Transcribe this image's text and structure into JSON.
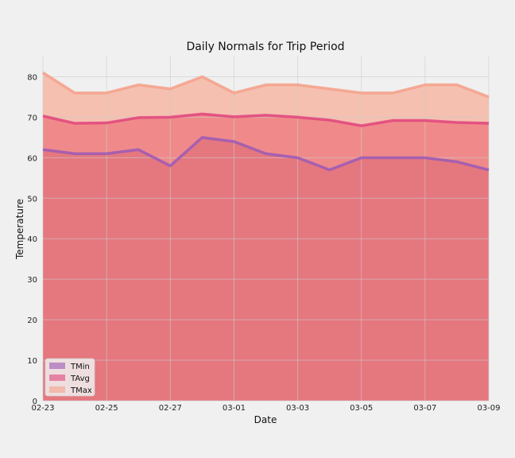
{
  "chart_data": {
    "type": "area",
    "title": "Daily Normals for Trip Period",
    "xlabel": "Date",
    "ylabel": "Temperature",
    "x": [
      "02-23",
      "02-24",
      "02-25",
      "02-26",
      "02-27",
      "02-28",
      "03-01",
      "03-02",
      "03-03",
      "03-04",
      "03-05",
      "03-06",
      "03-07",
      "03-08",
      "03-09"
    ],
    "xticks": [
      "02-23",
      "02-25",
      "02-27",
      "03-01",
      "03-03",
      "03-05",
      "03-07",
      "03-09"
    ],
    "ylim": [
      0,
      85
    ],
    "yticks": [
      0,
      10,
      20,
      30,
      40,
      50,
      60,
      70,
      80
    ],
    "grid": true,
    "stacked": false,
    "legend_position": "lower-left",
    "series": [
      {
        "name": "TMin",
        "color": "#9b59b6",
        "fill": "#e5777f",
        "values": [
          62,
          61,
          61,
          62,
          58,
          65,
          64,
          61,
          60,
          57,
          60,
          60,
          60,
          59,
          57
        ]
      },
      {
        "name": "TAvg",
        "color": "#e0447c",
        "fill": "#f08a8a",
        "values": [
          70.3,
          68.5,
          68.6,
          69.9,
          70.0,
          70.8,
          70.1,
          70.5,
          70.0,
          69.3,
          67.9,
          69.2,
          69.2,
          68.7,
          68.5
        ]
      },
      {
        "name": "TMax",
        "color": "#f5a08a",
        "fill": "#f5c0b0",
        "values": [
          81,
          76,
          76,
          78,
          77,
          80,
          76,
          78,
          78,
          77,
          76,
          76,
          78,
          78,
          75
        ]
      }
    ]
  }
}
